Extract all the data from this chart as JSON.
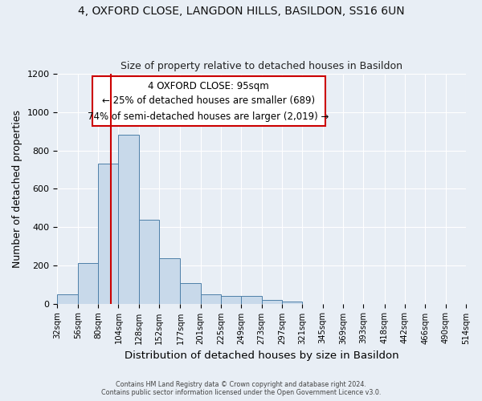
{
  "title_line1": "4, OXFORD CLOSE, LANGDON HILLS, BASILDON, SS16 6UN",
  "title_line2": "Size of property relative to detached houses in Basildon",
  "xlabel": "Distribution of detached houses by size in Basildon",
  "ylabel": "Number of detached properties",
  "bar_color": "#c8d9ea",
  "bar_edge_color": "#4d7fa8",
  "background_color": "#e8eef5",
  "grid_color": "#ffffff",
  "property_size": 95,
  "red_line_color": "#cc0000",
  "annotation_text_line1": "4 OXFORD CLOSE: 95sqm",
  "annotation_text_line2": "← 25% of detached houses are smaller (689)",
  "annotation_text_line3": "74% of semi-detached houses are larger (2,019) →",
  "annotation_box_color": "#cc0000",
  "annotation_bg": "#ffffff",
  "bin_edges": [
    32,
    56,
    80,
    104,
    128,
    152,
    177,
    201,
    225,
    249,
    273,
    297,
    321,
    345,
    369,
    393,
    418,
    442,
    466,
    490,
    514
  ],
  "bar_heights": [
    50,
    210,
    730,
    880,
    440,
    235,
    105,
    50,
    40,
    40,
    20,
    10,
    0,
    0,
    0,
    0,
    0,
    0,
    0,
    0
  ],
  "ylim": [
    0,
    1200
  ],
  "yticks": [
    0,
    200,
    400,
    600,
    800,
    1000,
    1200
  ],
  "footer_line1": "Contains HM Land Registry data © Crown copyright and database right 2024.",
  "footer_line2": "Contains public sector information licensed under the Open Government Licence v3.0."
}
